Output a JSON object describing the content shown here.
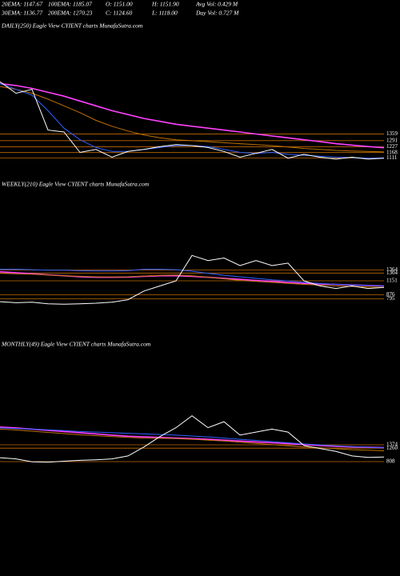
{
  "header": {
    "stats": [
      [
        "20EMA: 1147.67",
        "100EMA: 1185.07",
        "O: 1151.00",
        "H: 1151.90",
        "Avg Vol: 0.429 M"
      ],
      [
        "30EMA: 1136.77",
        "200EMA: 1270.23",
        "C: 1124.60",
        "L: 1118.00",
        "Day Vol: 0.727 M"
      ]
    ]
  },
  "chart_data": [
    {
      "type": "line",
      "title": "DAILY(250) Eagle  View  CYIENT charts MunafaSutra.com",
      "ylim": [
        1050,
        1950
      ],
      "yticks": [
        1359,
        1291,
        1227,
        1168,
        1111
      ],
      "grid": true,
      "grid_color": "#c06a00",
      "series": [
        {
          "color": "#ff40ff",
          "values": [
            1880,
            1860,
            1830,
            1790,
            1750,
            1700,
            1650,
            1600,
            1560,
            1520,
            1490,
            1460,
            1440,
            1420,
            1400,
            1380,
            1360,
            1340,
            1320,
            1300,
            1280,
            1260,
            1245,
            1230,
            1218
          ]
        },
        {
          "color": "#c07000",
          "values": [
            1850,
            1820,
            1780,
            1720,
            1650,
            1580,
            1500,
            1440,
            1390,
            1350,
            1320,
            1300,
            1290,
            1280,
            1270,
            1260,
            1250,
            1240,
            1225,
            1210,
            1200,
            1190,
            1185,
            1180,
            1175
          ]
        },
        {
          "color": "#3060ff",
          "values": [
            1880,
            1820,
            1760,
            1600,
            1420,
            1300,
            1220,
            1180,
            1180,
            1200,
            1220,
            1240,
            1240,
            1230,
            1200,
            1170,
            1160,
            1170,
            1150,
            1140,
            1130,
            1120,
            1115,
            1110,
            1112
          ]
        },
        {
          "color": "#ffffff",
          "values": [
            1900,
            1780,
            1820,
            1400,
            1380,
            1170,
            1200,
            1120,
            1180,
            1200,
            1230,
            1250,
            1240,
            1220,
            1180,
            1120,
            1160,
            1200,
            1110,
            1150,
            1120,
            1100,
            1120,
            1100,
            1110
          ]
        }
      ]
    },
    {
      "type": "line",
      "title": "WEEKLY(210) Eagle  View  CYIENT charts MunafaSutra.com",
      "ylim": [
        600,
        1750
      ],
      "yticks": [
        1364,
        1304,
        1151,
        876,
        795
      ],
      "grid": true,
      "grid_color": "#c06a00",
      "series": [
        {
          "color": "#ff40ff",
          "values": [
            1330,
            1310,
            1290,
            1270,
            1250,
            1230,
            1220,
            1220,
            1225,
            1240,
            1250,
            1250,
            1240,
            1220,
            1200,
            1180,
            1160,
            1140,
            1120,
            1100,
            1090,
            1080,
            1070,
            1060,
            1050
          ]
        },
        {
          "color": "#c07000",
          "values": [
            1300,
            1290,
            1280,
            1265,
            1250,
            1240,
            1230,
            1225,
            1230,
            1245,
            1260,
            1265,
            1250,
            1220,
            1190,
            1160,
            1140,
            1120,
            1100,
            1080,
            1065,
            1050,
            1040,
            1030,
            1020
          ]
        },
        {
          "color": "#3060ff",
          "values": [
            1380,
            1380,
            1370,
            1360,
            1360,
            1350,
            1345,
            1345,
            1350,
            1380,
            1380,
            1370,
            1340,
            1300,
            1260,
            1230,
            1200,
            1170,
            1150,
            1120,
            1100,
            1080,
            1070,
            1060,
            1050
          ]
        },
        {
          "color": "#ffffff",
          "values": [
            740,
            720,
            730,
            700,
            690,
            700,
            710,
            730,
            780,
            950,
            1050,
            1150,
            1650,
            1550,
            1600,
            1450,
            1550,
            1450,
            1500,
            1150,
            1050,
            1000,
            1050,
            1000,
            1020
          ]
        }
      ]
    },
    {
      "type": "line",
      "title": "MONTHLY(49) Eagle  View  CYIENT charts MunafaSutra.com",
      "ylim": [
        700,
        2450
      ],
      "yticks": [
        1374,
        1260,
        808
      ],
      "grid": true,
      "grid_color": "#c06a00",
      "series": [
        {
          "color": "#ff40ff",
          "values": [
            1970,
            1940,
            1900,
            1860,
            1820,
            1780,
            1740,
            1700,
            1660,
            1640,
            1620,
            1600,
            1580,
            1560,
            1530,
            1500,
            1470,
            1440,
            1410,
            1380,
            1350,
            1320,
            1300,
            1290,
            1280
          ]
        },
        {
          "color": "#c07000",
          "values": [
            1900,
            1870,
            1830,
            1790,
            1750,
            1710,
            1680,
            1650,
            1620,
            1600,
            1590,
            1580,
            1560,
            1530,
            1500,
            1460,
            1420,
            1380,
            1340,
            1300,
            1270,
            1240,
            1210,
            1190,
            1170
          ]
        },
        {
          "color": "#3060ff",
          "values": [
            1940,
            1920,
            1900,
            1880,
            1850,
            1820,
            1800,
            1780,
            1760,
            1740,
            1720,
            1700,
            1670,
            1640,
            1600,
            1560,
            1520,
            1480,
            1440,
            1400,
            1370,
            1340,
            1310,
            1290,
            1270
          ]
        },
        {
          "color": "#ffffff",
          "values": [
            940,
            900,
            800,
            790,
            820,
            850,
            870,
            900,
            1000,
            1300,
            1650,
            1950,
            2350,
            1950,
            2150,
            1700,
            1800,
            1900,
            1800,
            1350,
            1250,
            1150,
            1000,
            950,
            960
          ]
        }
      ]
    }
  ]
}
